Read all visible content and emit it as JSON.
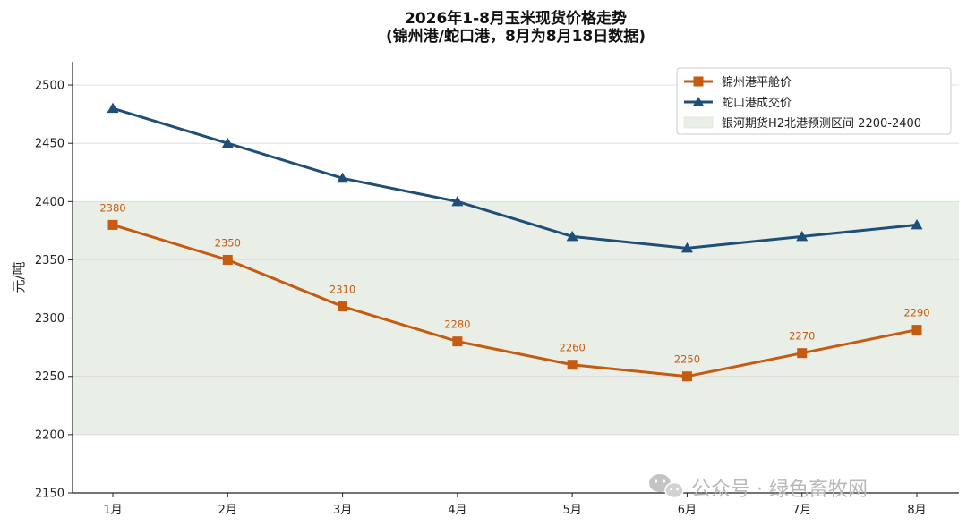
{
  "chart_data": {
    "type": "line",
    "title": "2026年1-8月玉米现货价格走势",
    "subtitle": "(锦州港/蛇口港，8月为8月18日数据)",
    "ylabel": "元/吨",
    "xlabel": "",
    "categories": [
      "1月",
      "2月",
      "3月",
      "4月",
      "5月",
      "6月",
      "7月",
      "8月"
    ],
    "ylim": [
      2150,
      2520
    ],
    "yticks": [
      2150,
      2200,
      2250,
      2300,
      2350,
      2400,
      2450,
      2500
    ],
    "grid": true,
    "legend_position": "top-right",
    "series": [
      {
        "name": "锦州港平舱价",
        "marker": "square",
        "color": "#c55a11",
        "values": [
          2380,
          2350,
          2310,
          2280,
          2260,
          2250,
          2270,
          2290
        ],
        "data_labels": [
          "2380",
          "2350",
          "2310",
          "2280",
          "2260",
          "2250",
          "2270",
          "2290"
        ]
      },
      {
        "name": "蛇口港成交价",
        "marker": "triangle",
        "color": "#1f4e79",
        "values": [
          2480,
          2450,
          2420,
          2400,
          2370,
          2360,
          2370,
          2380
        ]
      }
    ],
    "band": {
      "name": "银河期货H2北港预测区间 2200-2400",
      "from": 2200,
      "to": 2400,
      "color": "#e9efe6"
    }
  },
  "watermark": {
    "text": "公众号 · 绿色畜牧网",
    "icon": "wechat-icon"
  }
}
